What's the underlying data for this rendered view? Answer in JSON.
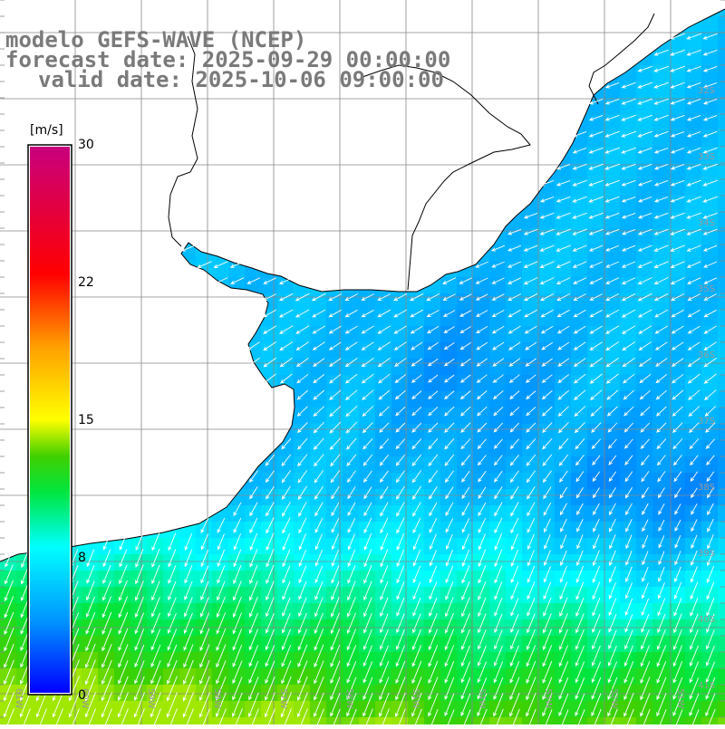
{
  "title": {
    "line1": "modelo GEFS-WAVE (NCEP)",
    "line2": "forecast date: 2025-09-29 00:00:00",
    "line3": "valid date: 2025-10-06 09:00:00"
  },
  "colorbar": {
    "unit": "[m/s]",
    "labels": [
      "30",
      "22",
      "15",
      "8",
      "0"
    ],
    "range": [
      0,
      30
    ],
    "stops": [
      {
        "v": 0,
        "color": "#0000ff"
      },
      {
        "v": 4,
        "color": "#0096ff"
      },
      {
        "v": 8,
        "color": "#00ffff"
      },
      {
        "v": 11,
        "color": "#00e640"
      },
      {
        "v": 13,
        "color": "#40d000"
      },
      {
        "v": 15,
        "color": "#ffff00"
      },
      {
        "v": 19,
        "color": "#ffa000"
      },
      {
        "v": 23,
        "color": "#ff0000"
      },
      {
        "v": 30,
        "color": "#c8007d"
      }
    ]
  },
  "map": {
    "lon_labels": [
      "61W",
      "60W",
      "59W",
      "58W",
      "57W",
      "56W",
      "55W",
      "54W",
      "53W",
      "52W",
      "51W"
    ],
    "lat_labels": [
      "32S",
      "33S",
      "34S",
      "35S",
      "36S",
      "37S",
      "38S",
      "39S",
      "40S",
      "41S"
    ],
    "land_color": "#ffffff",
    "coast_color": "#000000",
    "grid_color": "#888888",
    "arrow_color": "#ffffff"
  }
}
